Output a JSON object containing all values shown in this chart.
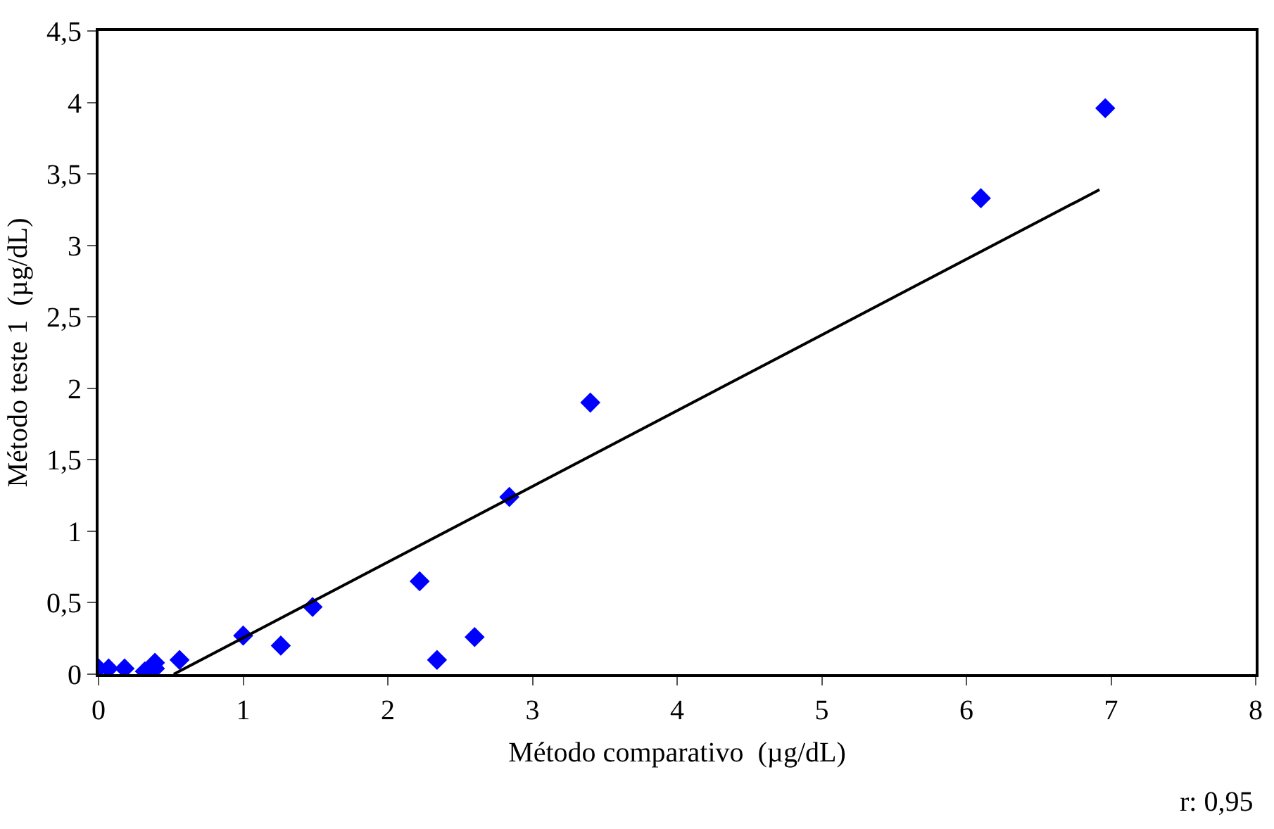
{
  "chart_data": {
    "type": "scatter",
    "xlabel": "Método comparativo  (µg/dL)",
    "ylabel": "Método teste 1  (µg/dL)",
    "xlim": [
      0,
      8
    ],
    "xticks": [
      0,
      1,
      2,
      3,
      4,
      5,
      6,
      7,
      8
    ],
    "ylim": [
      0,
      4.5
    ],
    "yticks": [
      0,
      {
        "value": 0.5,
        "label": "0,5"
      },
      1,
      {
        "value": 1.5,
        "label": "1,5"
      },
      2,
      {
        "value": 2.5,
        "label": "2,5"
      },
      3,
      {
        "value": 3.5,
        "label": "3,5"
      },
      4,
      {
        "value": 4.5,
        "label": "4,5"
      }
    ],
    "marker": "diamond",
    "series": [
      {
        "color": "#0000ff",
        "x": [
          0,
          0.07,
          0.18,
          0.32,
          0.39,
          0.39,
          0.56,
          1.0,
          1.26,
          1.48,
          2.22,
          2.34,
          2.6,
          2.84,
          3.4,
          6.1,
          6.96
        ],
        "values": [
          0.04,
          0.04,
          0.04,
          0.02,
          0.08,
          0.04,
          0.1,
          0.27,
          0.2,
          0.47,
          0.65,
          0.1,
          0.26,
          1.24,
          1.9,
          3.33,
          3.96
        ]
      },
      {
        "type": "line",
        "color": "#000000",
        "marker": "none",
        "line_style": "solid",
        "x": [
          0.52,
          6.92
        ],
        "values": [
          0,
          3.39
        ]
      }
    ],
    "annotations": [
      "r: 0,95"
    ]
  }
}
